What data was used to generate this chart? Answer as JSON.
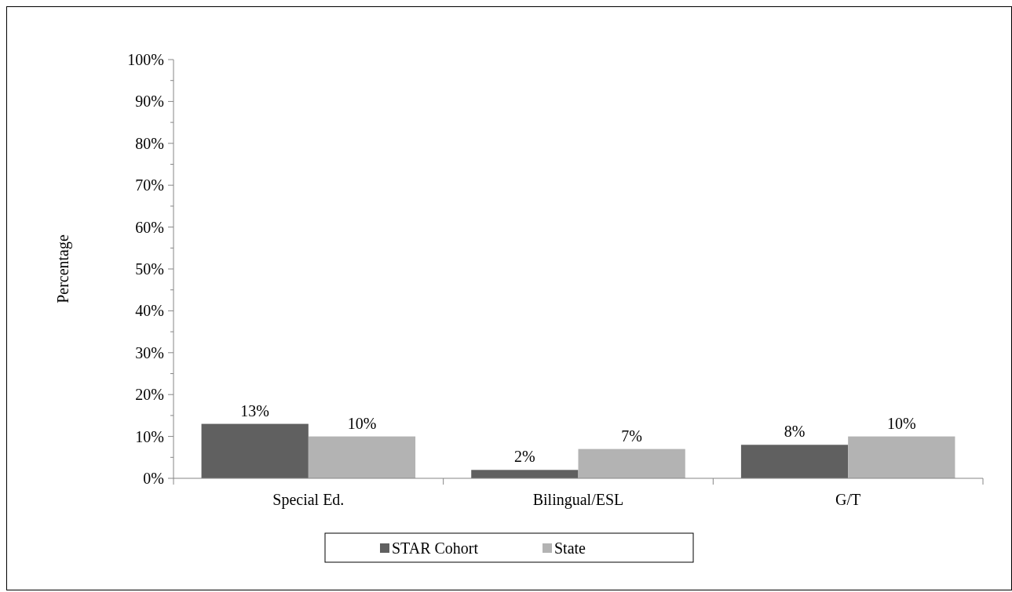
{
  "chart_data": {
    "type": "bar",
    "ylabel": "Percentage",
    "categories": [
      "Special Ed.",
      "Bilingual/ESL",
      "G/T"
    ],
    "series": [
      {
        "name": "STAR Cohort",
        "color": "#606060",
        "values": [
          13,
          2,
          8
        ],
        "value_labels": [
          "13%",
          "2%",
          "8%"
        ]
      },
      {
        "name": "State",
        "color": "#b3b3b3",
        "values": [
          10,
          7,
          10
        ],
        "value_labels": [
          "10%",
          "7%",
          "10%"
        ]
      }
    ],
    "ylim": [
      0,
      100
    ],
    "yticks": [
      {
        "value": 0,
        "label": "0%"
      },
      {
        "value": 5,
        "label": null
      },
      {
        "value": 10,
        "label": "10%"
      },
      {
        "value": 15,
        "label": null
      },
      {
        "value": 20,
        "label": "20%"
      },
      {
        "value": 25,
        "label": null
      },
      {
        "value": 30,
        "label": "30%"
      },
      {
        "value": 35,
        "label": null
      },
      {
        "value": 40,
        "label": "40%"
      },
      {
        "value": 45,
        "label": null
      },
      {
        "value": 50,
        "label": "50%"
      },
      {
        "value": 55,
        "label": null
      },
      {
        "value": 60,
        "label": "60%"
      },
      {
        "value": 65,
        "label": null
      },
      {
        "value": 70,
        "label": "70%"
      },
      {
        "value": 75,
        "label": null
      },
      {
        "value": 80,
        "label": "80%"
      },
      {
        "value": 85,
        "label": null
      },
      {
        "value": 90,
        "label": "90%"
      },
      {
        "value": 95,
        "label": null
      },
      {
        "value": 100,
        "label": "100%"
      }
    ],
    "grid": false,
    "legend": "bottom"
  }
}
